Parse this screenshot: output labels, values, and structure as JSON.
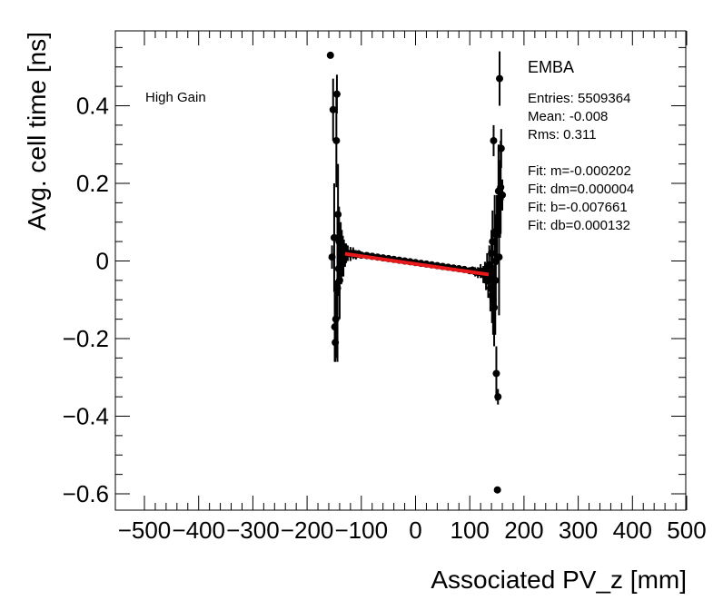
{
  "chart_data": {
    "type": "scatter",
    "xlabel": "Associated PV_z [mm]",
    "ylabel": "Avg. cell time [ns]",
    "xlim": [
      -500,
      500
    ],
    "ylim": [
      -0.64,
      0.6
    ],
    "xticks": [
      -500,
      -400,
      -300,
      -200,
      -100,
      0,
      100,
      200,
      300,
      400,
      500
    ],
    "xtick_labels": [
      "−500",
      "−400",
      "−300",
      "−200",
      "−100",
      "0",
      "100",
      "200",
      "300",
      "400",
      "500"
    ],
    "yticks": [
      0.4,
      0.2,
      0,
      -0.2,
      -0.4,
      -0.6
    ],
    "ytick_labels": [
      "0.4",
      "0.2",
      "0",
      "−0.2",
      "−0.4",
      "−0.6"
    ],
    "grid": false,
    "annotation": "High Gain",
    "stats_box": {
      "title": "EMBA",
      "lines": [
        "Entries: 5509364",
        "Mean: -0.008",
        "Rms: 0.311",
        "",
        "Fit: m=-0.000202",
        "Fit: dm=0.000004",
        "Fit: b=-0.007661",
        "Fit: db=0.000132"
      ]
    },
    "fit_line": {
      "x": [
        -130,
        135
      ],
      "y": [
        0.0186,
        -0.0349
      ],
      "color": "#e8191b"
    },
    "marker_color": "#000000",
    "series": [
      {
        "points": [
          [
            -157,
            0.53,
            0.0
          ],
          [
            -154,
            0.01,
            0.03
          ],
          [
            -152,
            0.39,
            0.08
          ],
          [
            -150,
            0.06,
            0.14
          ],
          [
            -149,
            -0.17,
            0.09
          ],
          [
            -148,
            -0.21,
            0.05
          ],
          [
            -147,
            -0.15,
            0.1
          ],
          [
            -146,
            0.31,
            0.12
          ],
          [
            -145,
            0.43,
            0.05
          ],
          [
            -144,
            -0.07,
            0.19
          ],
          [
            -143,
            0.12,
            0.13
          ],
          [
            -142,
            -0.02,
            0.07
          ],
          [
            -141,
            0.05,
            0.09
          ],
          [
            -140,
            -0.05,
            0.1
          ],
          [
            -139,
            0.02,
            0.06
          ],
          [
            -138,
            0.04,
            0.06
          ],
          [
            -137,
            -0.01,
            0.05
          ],
          [
            -136,
            0.03,
            0.05
          ],
          [
            -135,
            0.01,
            0.05
          ],
          [
            -134,
            0.025,
            0.04
          ],
          [
            -133,
            0.0,
            0.04
          ],
          [
            -132,
            0.02,
            0.035
          ],
          [
            -130,
            0.015,
            0.03
          ],
          [
            -128,
            0.02,
            0.025
          ],
          [
            -125,
            0.02,
            0.02
          ],
          [
            -120,
            0.018,
            0.018
          ],
          [
            -115,
            0.02,
            0.015
          ],
          [
            -110,
            0.016,
            0.012
          ],
          [
            -105,
            0.018,
            0.01
          ],
          [
            -100,
            0.015,
            0.008
          ],
          [
            -90,
            0.014,
            0.006
          ],
          [
            -80,
            0.012,
            0.005
          ],
          [
            -70,
            0.01,
            0.004
          ],
          [
            -60,
            0.008,
            0.004
          ],
          [
            -50,
            0.006,
            0.003
          ],
          [
            -40,
            0.004,
            0.003
          ],
          [
            -30,
            0.002,
            0.003
          ],
          [
            -20,
            0.0,
            0.003
          ],
          [
            -10,
            -0.002,
            0.003
          ],
          [
            0,
            -0.004,
            0.003
          ],
          [
            10,
            -0.006,
            0.003
          ],
          [
            20,
            -0.008,
            0.003
          ],
          [
            30,
            -0.01,
            0.003
          ],
          [
            40,
            -0.012,
            0.004
          ],
          [
            50,
            -0.014,
            0.004
          ],
          [
            60,
            -0.016,
            0.004
          ],
          [
            70,
            -0.018,
            0.005
          ],
          [
            80,
            -0.02,
            0.005
          ],
          [
            90,
            -0.022,
            0.006
          ],
          [
            100,
            -0.025,
            0.008
          ],
          [
            105,
            -0.024,
            0.01
          ],
          [
            110,
            -0.028,
            0.012
          ],
          [
            115,
            -0.03,
            0.014
          ],
          [
            120,
            -0.026,
            0.018
          ],
          [
            125,
            -0.035,
            0.022
          ],
          [
            128,
            -0.03,
            0.028
          ],
          [
            130,
            -0.04,
            0.035
          ],
          [
            132,
            -0.02,
            0.04
          ],
          [
            134,
            -0.05,
            0.045
          ],
          [
            136,
            -0.01,
            0.05
          ],
          [
            138,
            -0.07,
            0.06
          ],
          [
            140,
            0.02,
            0.06
          ],
          [
            141,
            -0.09,
            0.07
          ],
          [
            142,
            0.05,
            0.08
          ],
          [
            143,
            -0.1,
            0.09
          ],
          [
            144,
            0.31,
            0.04
          ],
          [
            145,
            -0.12,
            0.1
          ],
          [
            146,
            0.07,
            0.1
          ],
          [
            147,
            -0.05,
            0.14
          ],
          [
            148,
            0.0,
            0.12
          ],
          [
            149,
            -0.29,
            0.07
          ],
          [
            150,
            0.08,
            0.09
          ],
          [
            151,
            -0.59,
            0.0
          ],
          [
            152,
            -0.35,
            0.02
          ],
          [
            153,
            0.18,
            0.12
          ],
          [
            154,
            0.01,
            0.15
          ],
          [
            155,
            0.47,
            0.07
          ],
          [
            156,
            0.16,
            0.1
          ],
          [
            157,
            0.19,
            0.12
          ],
          [
            158,
            0.29,
            0.05
          ],
          [
            160,
            0.17,
            0.04
          ]
        ]
      }
    ]
  }
}
